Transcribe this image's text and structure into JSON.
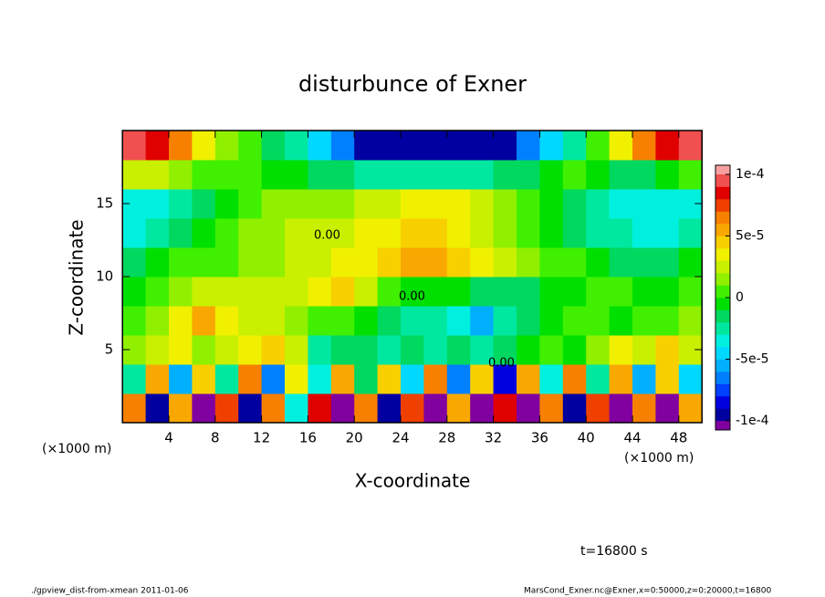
{
  "chart_data": {
    "type": "heatmap",
    "title": "disturbunce of Exner",
    "x_label": "X-coordinate",
    "y_label": "Z-coordinate",
    "x_unit_left": "(×1000 m)",
    "x_unit_right": "(×1000 m)",
    "time_label": "t=16800 s",
    "footer_left": "./gpview_dist-from-xmean  2011-01-06",
    "footer_right": "MarsCond_Exner.nc@Exner,x=0:50000,z=0:20000,t=16800",
    "contour_labels": [
      "0.00",
      "0.00",
      "0.00"
    ],
    "xlim": [
      0,
      50
    ],
    "ylim": [
      0,
      20
    ],
    "xticks": [
      4,
      8,
      12,
      16,
      20,
      24,
      28,
      32,
      36,
      40,
      44,
      48
    ],
    "yticks": [
      5,
      10,
      15
    ],
    "x": [
      1,
      3,
      5,
      7,
      9,
      11,
      13,
      15,
      17,
      19,
      21,
      23,
      25,
      27,
      29,
      31,
      33,
      35,
      37,
      39,
      41,
      43,
      45,
      47,
      49
    ],
    "y": [
      1,
      3,
      5,
      7,
      9,
      11,
      13,
      15,
      17,
      19
    ],
    "values": [
      [
        6e-05,
        -9e-05,
        5e-05,
        -0.00012,
        7e-05,
        -0.0001,
        6e-05,
        -4e-05,
        8e-05,
        -0.00011,
        6e-05,
        -9e-05,
        7e-05,
        -0.00012,
        5e-05,
        -0.00012,
        8e-05,
        -0.00012,
        6e-05,
        -9e-05,
        7e-05,
        -0.00012,
        6e-05,
        -0.00012,
        5e-05
      ],
      [
        -3e-05,
        5e-05,
        -6e-05,
        4e-05,
        -3e-05,
        6e-05,
        -7e-05,
        3e-05,
        -4e-05,
        5e-05,
        -2e-05,
        4e-05,
        -5e-05,
        6e-05,
        -7e-05,
        4e-05,
        -8e-05,
        5e-05,
        -4e-05,
        6e-05,
        -3e-05,
        5e-05,
        -6e-05,
        4e-05,
        -5e-05
      ],
      [
        1e-05,
        2e-05,
        3e-05,
        1e-05,
        2e-05,
        3e-05,
        4e-05,
        2e-05,
        -3e-05,
        -2e-05,
        -2e-05,
        -3e-05,
        -2e-05,
        -3e-05,
        -2e-05,
        -3e-05,
        -2e-05,
        -1e-05,
        0,
        -1e-05,
        1e-05,
        3e-05,
        2e-05,
        4e-05,
        2e-05
      ],
      [
        0,
        1e-05,
        3e-05,
        5e-05,
        3e-05,
        2e-05,
        2e-05,
        1e-05,
        0,
        0,
        -1e-05,
        -2e-05,
        -3e-05,
        -3e-05,
        -4e-05,
        -6e-05,
        -3e-05,
        -2e-05,
        -1e-05,
        0,
        0,
        -1e-05,
        0,
        0,
        1e-05
      ],
      [
        -1e-05,
        0,
        1e-05,
        2e-05,
        2e-05,
        2e-05,
        2e-05,
        2e-05,
        3e-05,
        4e-05,
        2e-05,
        0,
        -1e-05,
        -1e-05,
        -1e-05,
        -2e-05,
        -2e-05,
        -2e-05,
        -1e-05,
        -1e-05,
        0,
        0,
        -1e-05,
        -1e-05,
        0
      ],
      [
        -2e-05,
        -1e-05,
        0,
        0,
        0,
        1e-05,
        1e-05,
        2e-05,
        2e-05,
        3e-05,
        3e-05,
        4e-05,
        5e-05,
        5e-05,
        4e-05,
        3e-05,
        2e-05,
        1e-05,
        0,
        0,
        -1e-05,
        -2e-05,
        -2e-05,
        -2e-05,
        -1e-05
      ],
      [
        -4e-05,
        -3e-05,
        -2e-05,
        -1e-05,
        0,
        1e-05,
        1e-05,
        2e-05,
        2e-05,
        2e-05,
        3e-05,
        3e-05,
        4e-05,
        4e-05,
        3e-05,
        2e-05,
        1e-05,
        0,
        -1e-05,
        -2e-05,
        -3e-05,
        -3e-05,
        -4e-05,
        -4e-05,
        -3e-05
      ],
      [
        -4e-05,
        -4e-05,
        -3e-05,
        -2e-05,
        -1e-05,
        0,
        1e-05,
        1e-05,
        1e-05,
        1e-05,
        2e-05,
        2e-05,
        3e-05,
        3e-05,
        3e-05,
        2e-05,
        1e-05,
        0,
        -1e-05,
        -2e-05,
        -3e-05,
        -4e-05,
        -4e-05,
        -4e-05,
        -4e-05
      ],
      [
        2e-05,
        2e-05,
        1e-05,
        0,
        0,
        0,
        -1e-05,
        -1e-05,
        -2e-05,
        -2e-05,
        -3e-05,
        -3e-05,
        -3e-05,
        -3e-05,
        -3e-05,
        -3e-05,
        -2e-05,
        -2e-05,
        -1e-05,
        0,
        -1e-05,
        -2e-05,
        -2e-05,
        -1e-05,
        0
      ],
      [
        9e-05,
        8e-05,
        6e-05,
        3e-05,
        1e-05,
        0,
        -2e-05,
        -3e-05,
        -5e-05,
        -7e-05,
        -9e-05,
        -0.0001,
        -0.0001,
        -0.0001,
        -0.0001,
        -0.0001,
        -9e-05,
        -7e-05,
        -5e-05,
        -3e-05,
        0,
        3e-05,
        6e-05,
        8e-05,
        9e-05
      ]
    ],
    "clim": [
      -0.0001,
      0.0001
    ],
    "colorbar_ticks": [
      {
        "value": 0.0001,
        "label": "1e-4"
      },
      {
        "value": 5e-05,
        "label": "5e-5"
      },
      0,
      {
        "value": -5e-05,
        "label": "-5e-5"
      },
      {
        "value": -0.0001,
        "label": "-1e-4"
      }
    ],
    "under_color": "#8000a0",
    "over_color": "#f8a0a0",
    "colors": [
      "#0000a0",
      "#0000e0",
      "#0040ff",
      "#0080ff",
      "#00b0ff",
      "#00d8ff",
      "#00f0e0",
      "#00e8a0",
      "#00d860",
      "#00e000",
      "#40f000",
      "#90f000",
      "#c8f000",
      "#f0f000",
      "#f8d000",
      "#f8a800",
      "#f88000",
      "#f04000",
      "#e00000",
      "#f05050"
    ]
  }
}
